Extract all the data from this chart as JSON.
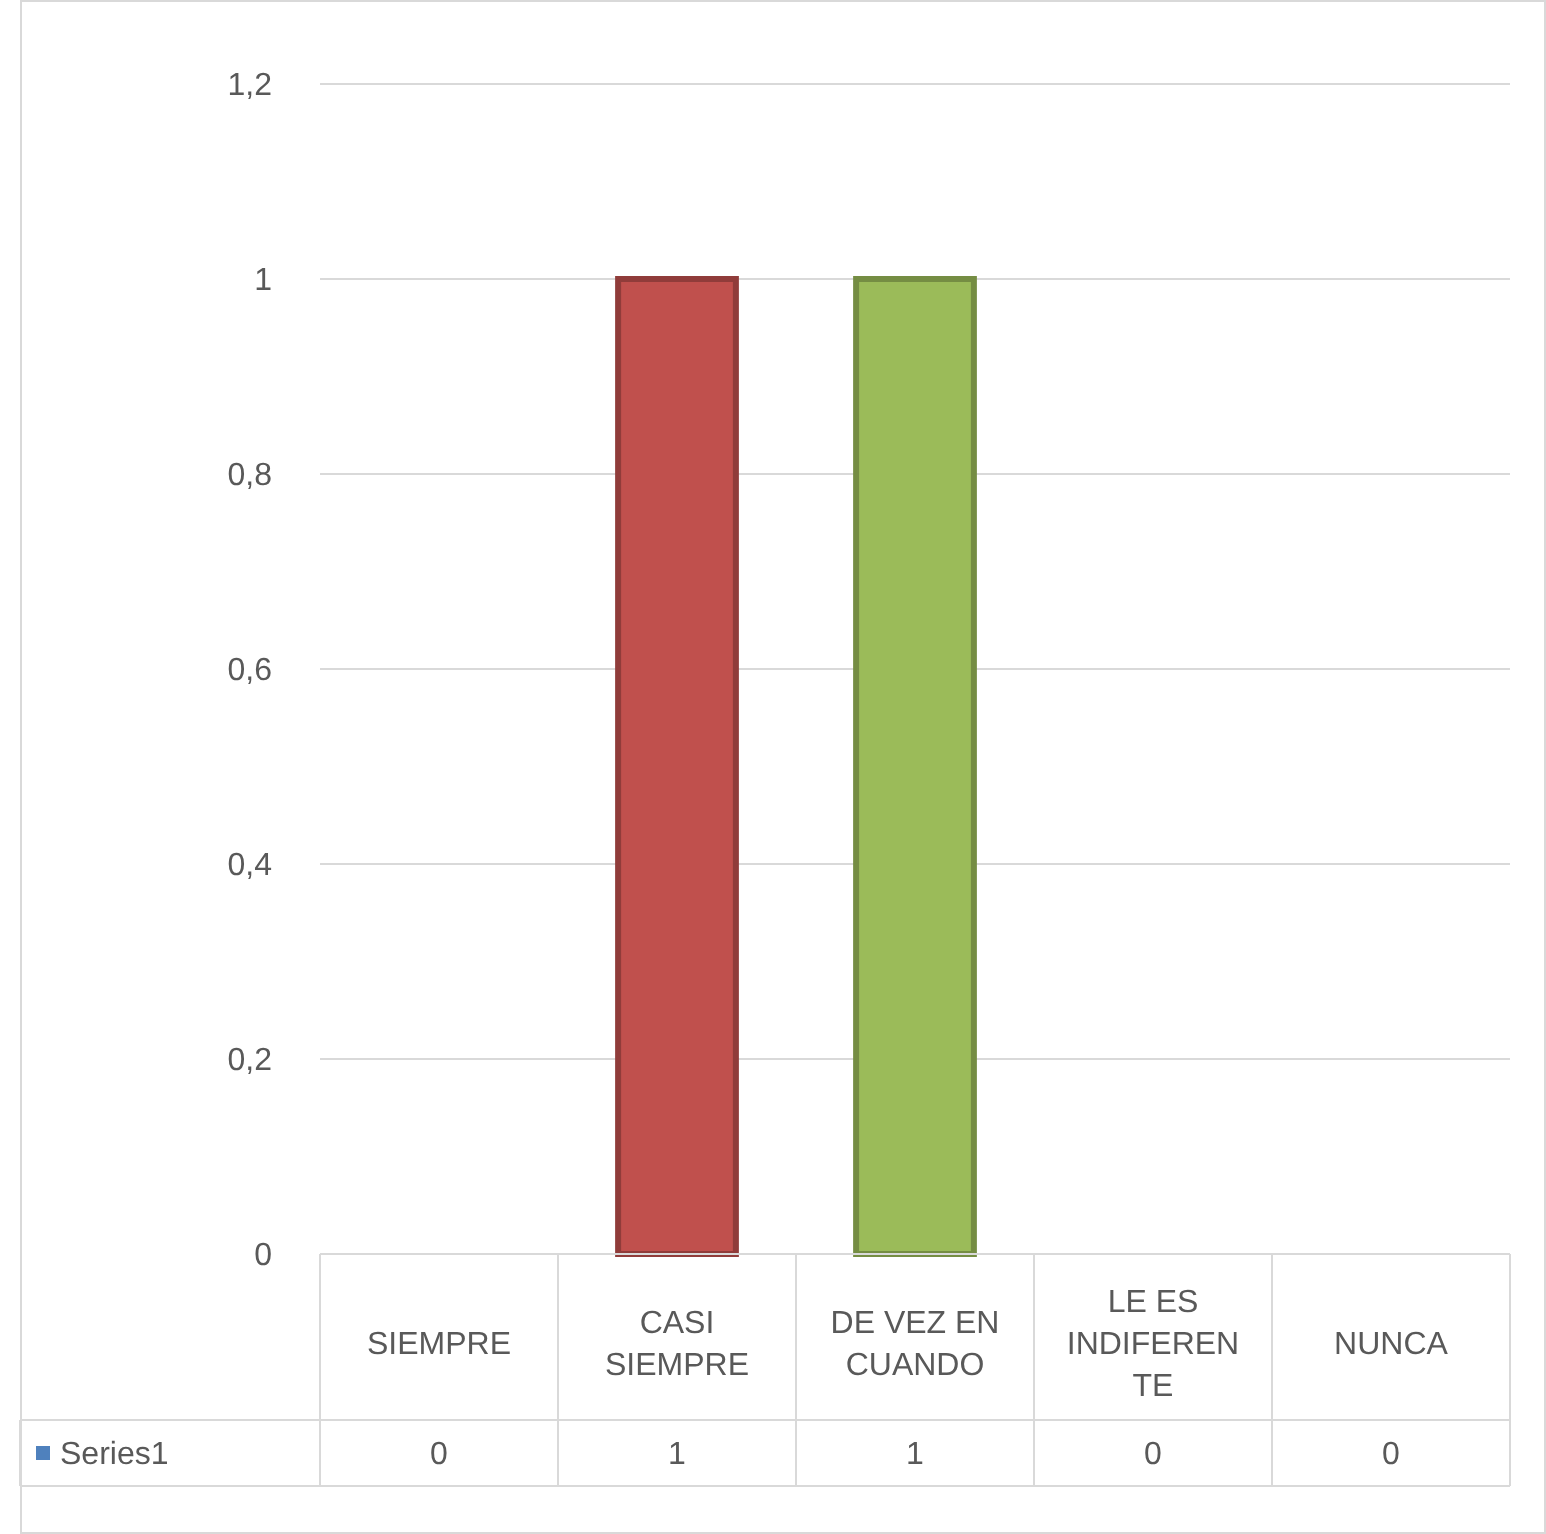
{
  "chart_data": {
    "type": "bar",
    "categories": [
      "SIEMPRE",
      "CASI SIEMPRE",
      "DE VEZ EN CUANDO",
      "LE ES INDIFERENTE",
      "NUNCA"
    ],
    "series": [
      {
        "name": "Series1",
        "color": "#4f81bd",
        "colors": [
          "#4f81bd",
          "#c0504d",
          "#9bbb59",
          "#8064a2",
          "#4bacc6"
        ],
        "values": [
          0,
          1,
          1,
          0,
          0
        ]
      }
    ],
    "ylim": [
      0,
      1.2
    ],
    "yticks": [
      {
        "value": 0,
        "label": "0"
      },
      {
        "value": 0.2,
        "label": "0,2"
      },
      {
        "value": 0.4,
        "label": "0,4"
      },
      {
        "value": 0.6,
        "label": "0,6"
      },
      {
        "value": 0.8,
        "label": "0,8"
      },
      {
        "value": 1,
        "label": "1"
      },
      {
        "value": 1.2,
        "label": "1,2"
      }
    ],
    "grid": "y",
    "legend": "bottom",
    "data_labels": true
  }
}
